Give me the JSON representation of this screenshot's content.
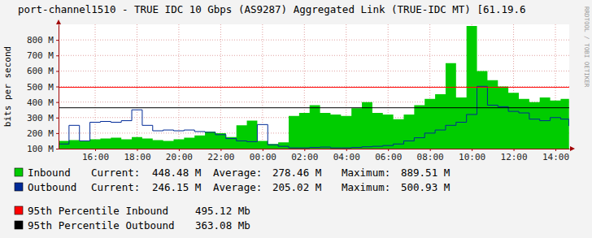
{
  "chart_data": {
    "type": "area",
    "title": "port-channel1510 - TRUE IDC 10 Gbps (AS9287) Aggregated Link (TRUE-IDC MT) [61.19.6",
    "y_label": "bits per second",
    "annotations": [
      {
        "text": "RRDTOOL / TOBI OETIKER"
      }
    ],
    "grid": true,
    "xlim": [
      14.25,
      38.66
    ],
    "xticks": [
      {
        "value": 16,
        "label": "16:00"
      },
      {
        "value": 18,
        "label": "18:00"
      },
      {
        "value": 20,
        "label": "20:00"
      },
      {
        "value": 22,
        "label": "22:00"
      },
      {
        "value": 24,
        "label": "00:00"
      },
      {
        "value": 26,
        "label": "02:00"
      },
      {
        "value": 28,
        "label": "04:00"
      },
      {
        "value": 30,
        "label": "06:00"
      },
      {
        "value": 32,
        "label": "08:00"
      },
      {
        "value": 34,
        "label": "10:00"
      },
      {
        "value": 36,
        "label": "12:00"
      },
      {
        "value": 38,
        "label": "14:00"
      }
    ],
    "ylim": [
      100,
      900
    ],
    "yticks": [
      {
        "value": 100,
        "label": "100 M"
      },
      {
        "value": 200,
        "label": "200 M"
      },
      {
        "value": 300,
        "label": "300 M"
      },
      {
        "value": 400,
        "label": "400 M"
      },
      {
        "value": 500,
        "label": "500 M"
      },
      {
        "value": 600,
        "label": "600 M"
      },
      {
        "value": 700,
        "label": "700 M"
      },
      {
        "value": 800,
        "label": "800 M"
      }
    ],
    "x": [
      14.25,
      14.75,
      15.25,
      15.75,
      16.25,
      16.75,
      17.25,
      17.75,
      18.25,
      18.75,
      19.25,
      19.75,
      20.25,
      20.75,
      21.25,
      21.75,
      22.25,
      22.75,
      23.25,
      23.75,
      24.25,
      24.75,
      25.25,
      25.75,
      26.25,
      26.75,
      27.25,
      27.75,
      28.25,
      28.75,
      29.25,
      29.75,
      30.25,
      30.75,
      31.25,
      31.75,
      32.25,
      32.75,
      33.25,
      33.75,
      34.25,
      34.75,
      35.25,
      35.75,
      36.25,
      36.75,
      37.25,
      37.75,
      38.25,
      38.65
    ],
    "series": [
      {
        "name": "Inbound",
        "type": "area",
        "color": "#00cc00",
        "values": [
          150,
          155,
          150,
          160,
          165,
          170,
          160,
          175,
          165,
          155,
          150,
          160,
          170,
          185,
          210,
          200,
          175,
          250,
          280,
          150,
          130,
          140,
          310,
          330,
          380,
          330,
          320,
          310,
          360,
          400,
          330,
          320,
          290,
          320,
          380,
          420,
          450,
          650,
          430,
          889.51,
          600,
          540,
          500,
          460,
          420,
          400,
          430,
          410,
          420,
          448.48
        ],
        "stats": [
          {
            "label": "Current:",
            "value": 448.48,
            "value_label": "448.48 M"
          },
          {
            "label": "Average:",
            "value": 278.46,
            "value_label": "278.46 M"
          },
          {
            "label": "Maximum:",
            "value": 889.51,
            "value_label": "889.51 M"
          }
        ]
      },
      {
        "name": "Outbound",
        "type": "line",
        "color": "#002a97",
        "values": [
          130,
          250,
          150,
          270,
          275,
          270,
          280,
          350,
          250,
          215,
          220,
          215,
          220,
          210,
          205,
          190,
          165,
          150,
          145,
          255,
          125,
          115,
          105,
          105,
          108,
          110,
          105,
          105,
          108,
          112,
          115,
          120,
          130,
          150,
          170,
          200,
          220,
          250,
          270,
          320,
          500.93,
          380,
          370,
          340,
          330,
          290,
          280,
          300,
          290,
          246.15
        ],
        "stats": [
          {
            "label": "Current:",
            "value": 246.15,
            "value_label": "246.15 M"
          },
          {
            "label": "Average:",
            "value": 205.02,
            "value_label": "205.02 M"
          },
          {
            "label": "Maximum:",
            "value": 500.93,
            "value_label": "500.93 M"
          }
        ]
      }
    ],
    "reference_lines": [
      {
        "label": "95th Percentile Inbound",
        "value": 495.12,
        "value_label": "495.12 Mb",
        "color": "#ff0000"
      },
      {
        "label": "95th Percentile Outbound",
        "value": 363.08,
        "value_label": "363.08 Mb",
        "color": "#000000"
      }
    ]
  }
}
